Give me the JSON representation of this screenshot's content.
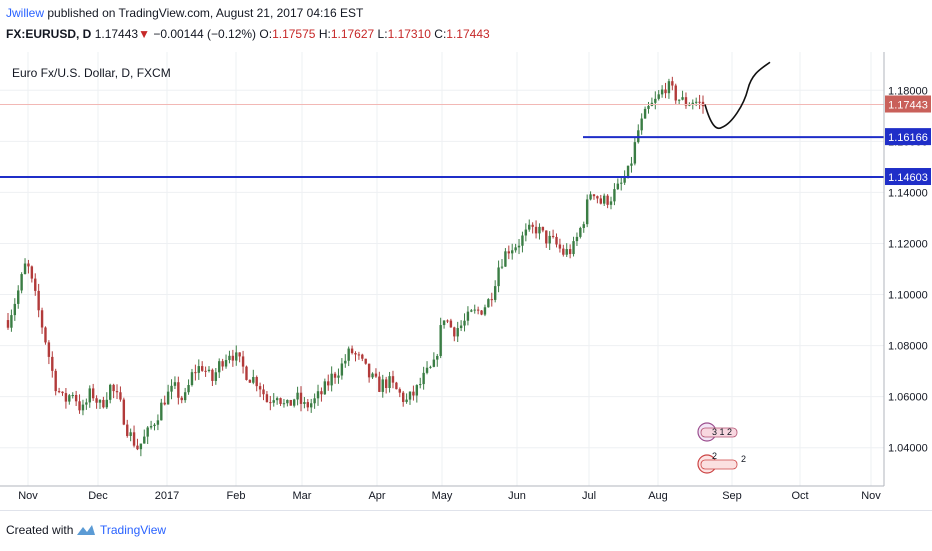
{
  "header": {
    "user": "Jwillew",
    "published_text": "published on TradingView.com, August 21, 2017 04:16 EST"
  },
  "legend": {
    "symbol": "FX:EURUSD, D",
    "price": "1.17443",
    "change": "−0.00144 (−0.12%)",
    "o_label": "O:",
    "o_value": "1.17575",
    "h_label": "H:",
    "h_value": "1.17627",
    "l_label": "L:",
    "l_value": "1.17310",
    "c_label": "C:",
    "c_value": "1.17443"
  },
  "footer": {
    "created_with": "Created with",
    "brand": "TradingView"
  },
  "colors": {
    "up": "#3a7d44",
    "down": "#b23a3a",
    "level_line": "#1f2ec8",
    "price_tag": "#c9605a",
    "level_tag": "#1f2ec8",
    "grid": "#eef0f3"
  },
  "chart_data": {
    "type": "candlestick",
    "title": "Euro Fx/U.S. Dollar, D, FXCM",
    "ylim": [
      1.025,
      1.195
    ],
    "x_ticks": [
      "Nov",
      "Dec",
      "2017",
      "Feb",
      "Mar",
      "Apr",
      "May",
      "Jun",
      "Jul",
      "Aug",
      "Sep",
      "Oct",
      "Nov"
    ],
    "y_ticks": [
      "1.18000",
      "1.16000",
      "1.14000",
      "1.12000",
      "1.10000",
      "1.08000",
      "1.06000",
      "1.04000"
    ],
    "y_tick_values": [
      1.18,
      1.16,
      1.14,
      1.12,
      1.1,
      1.08,
      1.06,
      1.04
    ],
    "current_price": 1.17443,
    "current_price_label": "1.17443",
    "levels": [
      {
        "value": 1.16166,
        "label": "1.16166",
        "start": "Jul"
      },
      {
        "value": 1.14603,
        "label": "1.14603",
        "start": "Nov"
      }
    ],
    "close_path": [
      1.09,
      1.1,
      1.113,
      1.098,
      1.083,
      1.066,
      1.058,
      1.062,
      1.054,
      1.062,
      1.056,
      1.064,
      1.058,
      1.046,
      1.04,
      1.045,
      1.052,
      1.06,
      1.063,
      1.058,
      1.07,
      1.072,
      1.066,
      1.074,
      1.078,
      1.073,
      1.068,
      1.066,
      1.058,
      1.062,
      1.055,
      1.06,
      1.056,
      1.058,
      1.062,
      1.068,
      1.072,
      1.078,
      1.074,
      1.068,
      1.064,
      1.066,
      1.062,
      1.058,
      1.062,
      1.068,
      1.072,
      1.092,
      1.086,
      1.088,
      1.092,
      1.094,
      1.098,
      1.112,
      1.118,
      1.12,
      1.124,
      1.126,
      1.122,
      1.12,
      1.116,
      1.118,
      1.128,
      1.142,
      1.136,
      1.138,
      1.142,
      1.148,
      1.164,
      1.172,
      1.176,
      1.182,
      1.178,
      1.175,
      1.176,
      1.174
    ],
    "projection": [
      [
        1.17443,
        0
      ],
      [
        1.1655,
        1
      ],
      [
        1.1805,
        3.3
      ],
      [
        1.191,
        5.0
      ]
    ]
  }
}
